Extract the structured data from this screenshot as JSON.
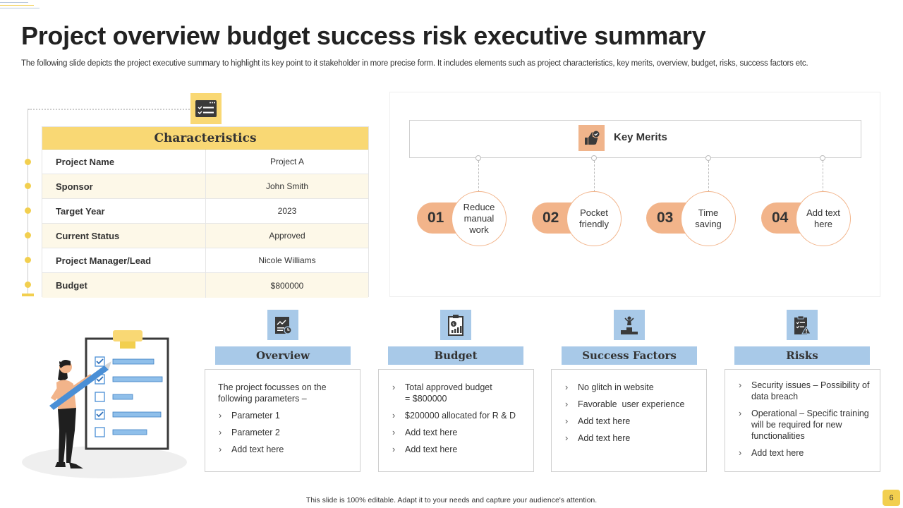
{
  "title": "Project overview budget success risk executive summary",
  "subtitle": "The following slide depicts the project executive summary to highlight its key point to it stakeholder in more precise form. It includes elements such as project characteristics, key merits, overview, budget, risks, success factors etc.",
  "characteristics": {
    "header": "Characteristics",
    "icon": "checklist-window-icon",
    "rows": [
      {
        "label": "Project Name",
        "value": "Project A"
      },
      {
        "label": "Sponsor",
        "value": "John Smith"
      },
      {
        "label": "Target Year",
        "value": "2023"
      },
      {
        "label": "Current Status",
        "value": "Approved"
      },
      {
        "label": "Project Manager/Lead",
        "value": "Nicole Williams"
      },
      {
        "label": "Budget",
        "value": "$800000"
      }
    ]
  },
  "key_merits": {
    "title": "Key Merits",
    "icon": "thumbs-up-icon",
    "items": [
      {
        "number": "01",
        "text": "Reduce manual work"
      },
      {
        "number": "02",
        "text": "Pocket friendly"
      },
      {
        "number": "03",
        "text": "Time saving"
      },
      {
        "number": "04",
        "text": "Add text here"
      }
    ]
  },
  "cards": {
    "overview": {
      "title": "Overview",
      "icon": "chart-document-icon",
      "intro": "The project focusses on the following parameters –",
      "items": [
        "Parameter 1",
        "Parameter 2",
        "Add text here"
      ]
    },
    "budget": {
      "title": "Budget",
      "icon": "budget-report-icon",
      "items": [
        "Total approved budget = $800000",
        "$200000 allocated for R & D",
        "Add text here",
        "Add text here"
      ]
    },
    "success_factors": {
      "title": "Success Factors",
      "icon": "podium-icon",
      "items": [
        "No glitch in website",
        "Favorable  user experience",
        "Add text here",
        "Add text here"
      ]
    },
    "risks": {
      "title": "Risks",
      "icon": "risk-clipboard-icon",
      "items": [
        "Security issues – Possibility of data breach",
        "Operational – Specific training will be required for new functionalities",
        "Add text here"
      ]
    }
  },
  "footer": "This slide is 100% editable.  Adapt it to your needs and capture your audience's attention.",
  "page_number": "6",
  "colors": {
    "yellow_accent": "#f9d874",
    "yellow_dot": "#f2cf4f",
    "peach_accent": "#f2b48a",
    "blue_accent": "#a8c9e8",
    "dark_text": "#222222"
  }
}
